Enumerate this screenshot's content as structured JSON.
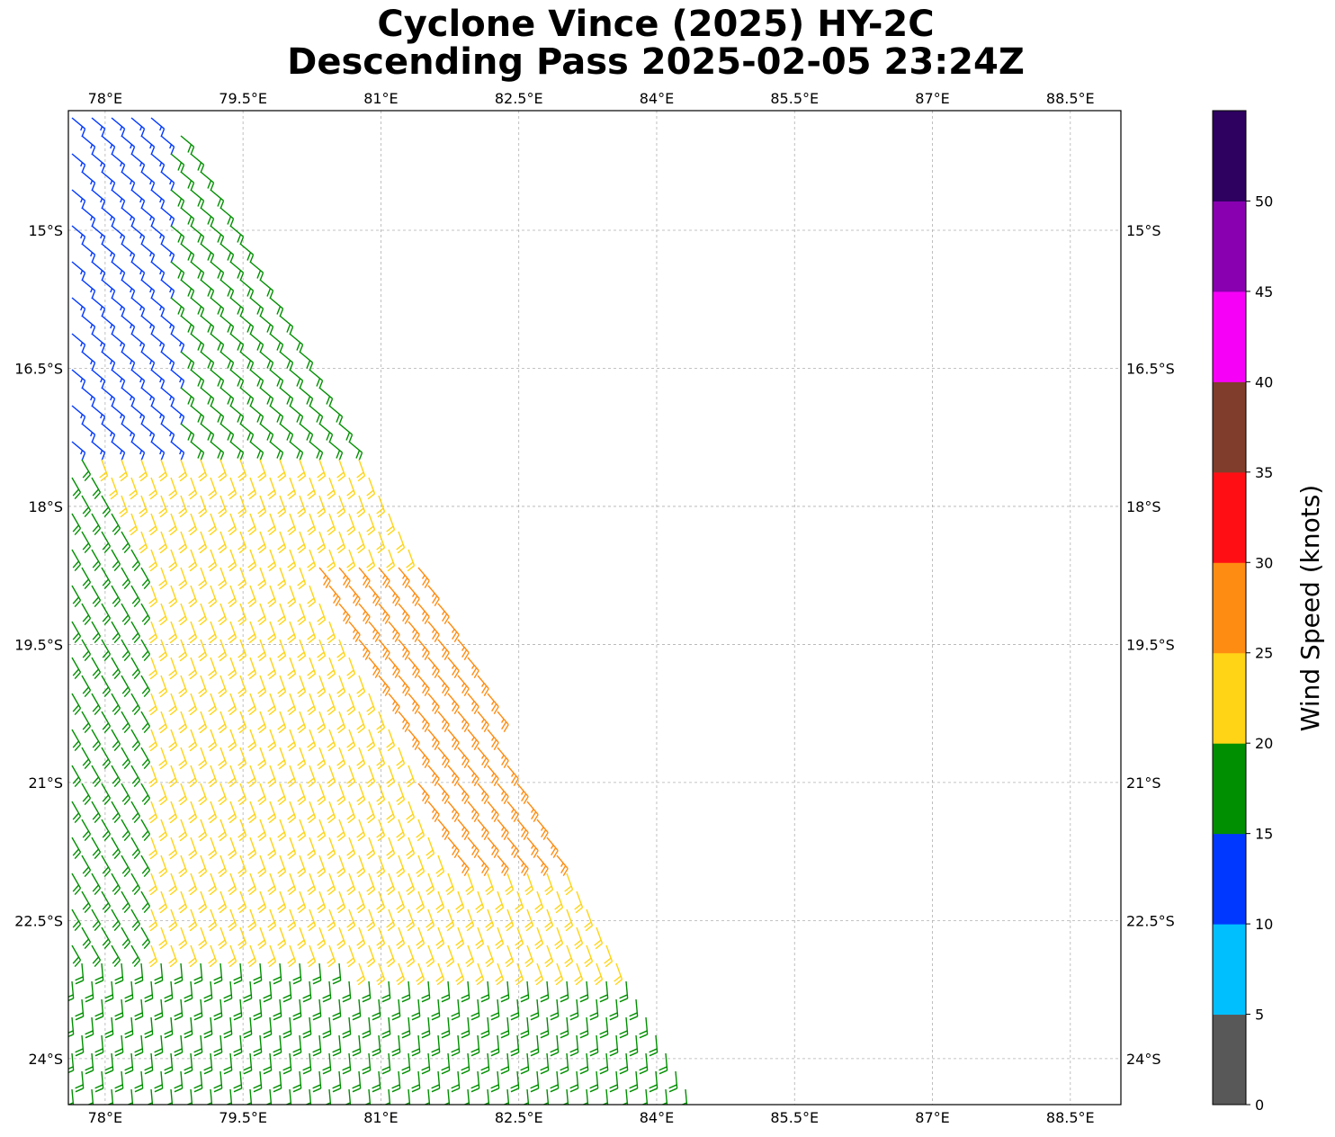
{
  "title_line1": "Cyclone Vince (2025) HY-2C",
  "title_line2": "Descending Pass 2025-02-05 23:24Z",
  "chart_data": {
    "type": "wind-barb-map",
    "lon_range": [
      77.6,
      89.05
    ],
    "lat_range": [
      -24.5,
      -13.7
    ],
    "lon_ticks": [
      {
        "value": 78,
        "label": "78°E"
      },
      {
        "value": 79.5,
        "label": "79.5°E"
      },
      {
        "value": 81,
        "label": "81°E"
      },
      {
        "value": 82.5,
        "label": "82.5°E"
      },
      {
        "value": 84,
        "label": "84°E"
      },
      {
        "value": 85.5,
        "label": "85.5°E"
      },
      {
        "value": 87,
        "label": "87°E"
      },
      {
        "value": 88.5,
        "label": "88.5°E"
      }
    ],
    "lat_ticks": [
      {
        "value": -15,
        "label": "15°S"
      },
      {
        "value": -16.5,
        "label": "16.5°S"
      },
      {
        "value": -18,
        "label": "18°S"
      },
      {
        "value": -19.5,
        "label": "19.5°S"
      },
      {
        "value": -21,
        "label": "21°S"
      },
      {
        "value": -22.5,
        "label": "22.5°S"
      },
      {
        "value": -24,
        "label": "24°S"
      }
    ],
    "grid": "dashed",
    "swath_edge": [
      [
        78.7,
        -13.7
      ],
      [
        79.9,
        -15.6
      ],
      [
        80.9,
        -17.4
      ],
      [
        81.9,
        -19.4
      ],
      [
        82.7,
        -21.0
      ],
      [
        83.5,
        -22.5
      ],
      [
        84.5,
        -24.5
      ]
    ],
    "colorbar": {
      "label": "Wind Speed (knots)",
      "bins": [
        {
          "min": 0,
          "max": 5,
          "color": "#585858"
        },
        {
          "min": 5,
          "max": 10,
          "color": "#00bfff"
        },
        {
          "min": 10,
          "max": 15,
          "color": "#0038ff"
        },
        {
          "min": 15,
          "max": 20,
          "color": "#008f00"
        },
        {
          "min": 20,
          "max": 25,
          "color": "#ffd416"
        },
        {
          "min": 25,
          "max": 30,
          "color": "#ff8c12"
        },
        {
          "min": 30,
          "max": 35,
          "color": "#ff0f14"
        },
        {
          "min": 35,
          "max": 40,
          "color": "#803d2b"
        },
        {
          "min": 40,
          "max": 45,
          "color": "#f700f7"
        },
        {
          "min": 45,
          "max": 50,
          "color": "#8800b0"
        },
        {
          "min": 50,
          "max": 55,
          "color": "#2e0060"
        }
      ],
      "tick_labels": [
        "0",
        "5",
        "10",
        "15",
        "20",
        "25",
        "30",
        "35",
        "40",
        "45",
        "50"
      ]
    },
    "wind_regions": [
      {
        "description": "northwest swath, lat > -17.3",
        "speed_kt": 13,
        "direction": "from southeast"
      },
      {
        "description": "west-central swath",
        "speed_kt": 18,
        "direction": "from southeast"
      },
      {
        "description": "central swath",
        "speed_kt": 22,
        "direction": "from south-southeast"
      },
      {
        "description": "near eastern edge, -18.5 to -21.8",
        "speed_kt": 27,
        "direction": "from southeast"
      },
      {
        "description": "southern swath, lat < -22.8",
        "speed_kt": 18,
        "direction": "from south"
      }
    ]
  }
}
